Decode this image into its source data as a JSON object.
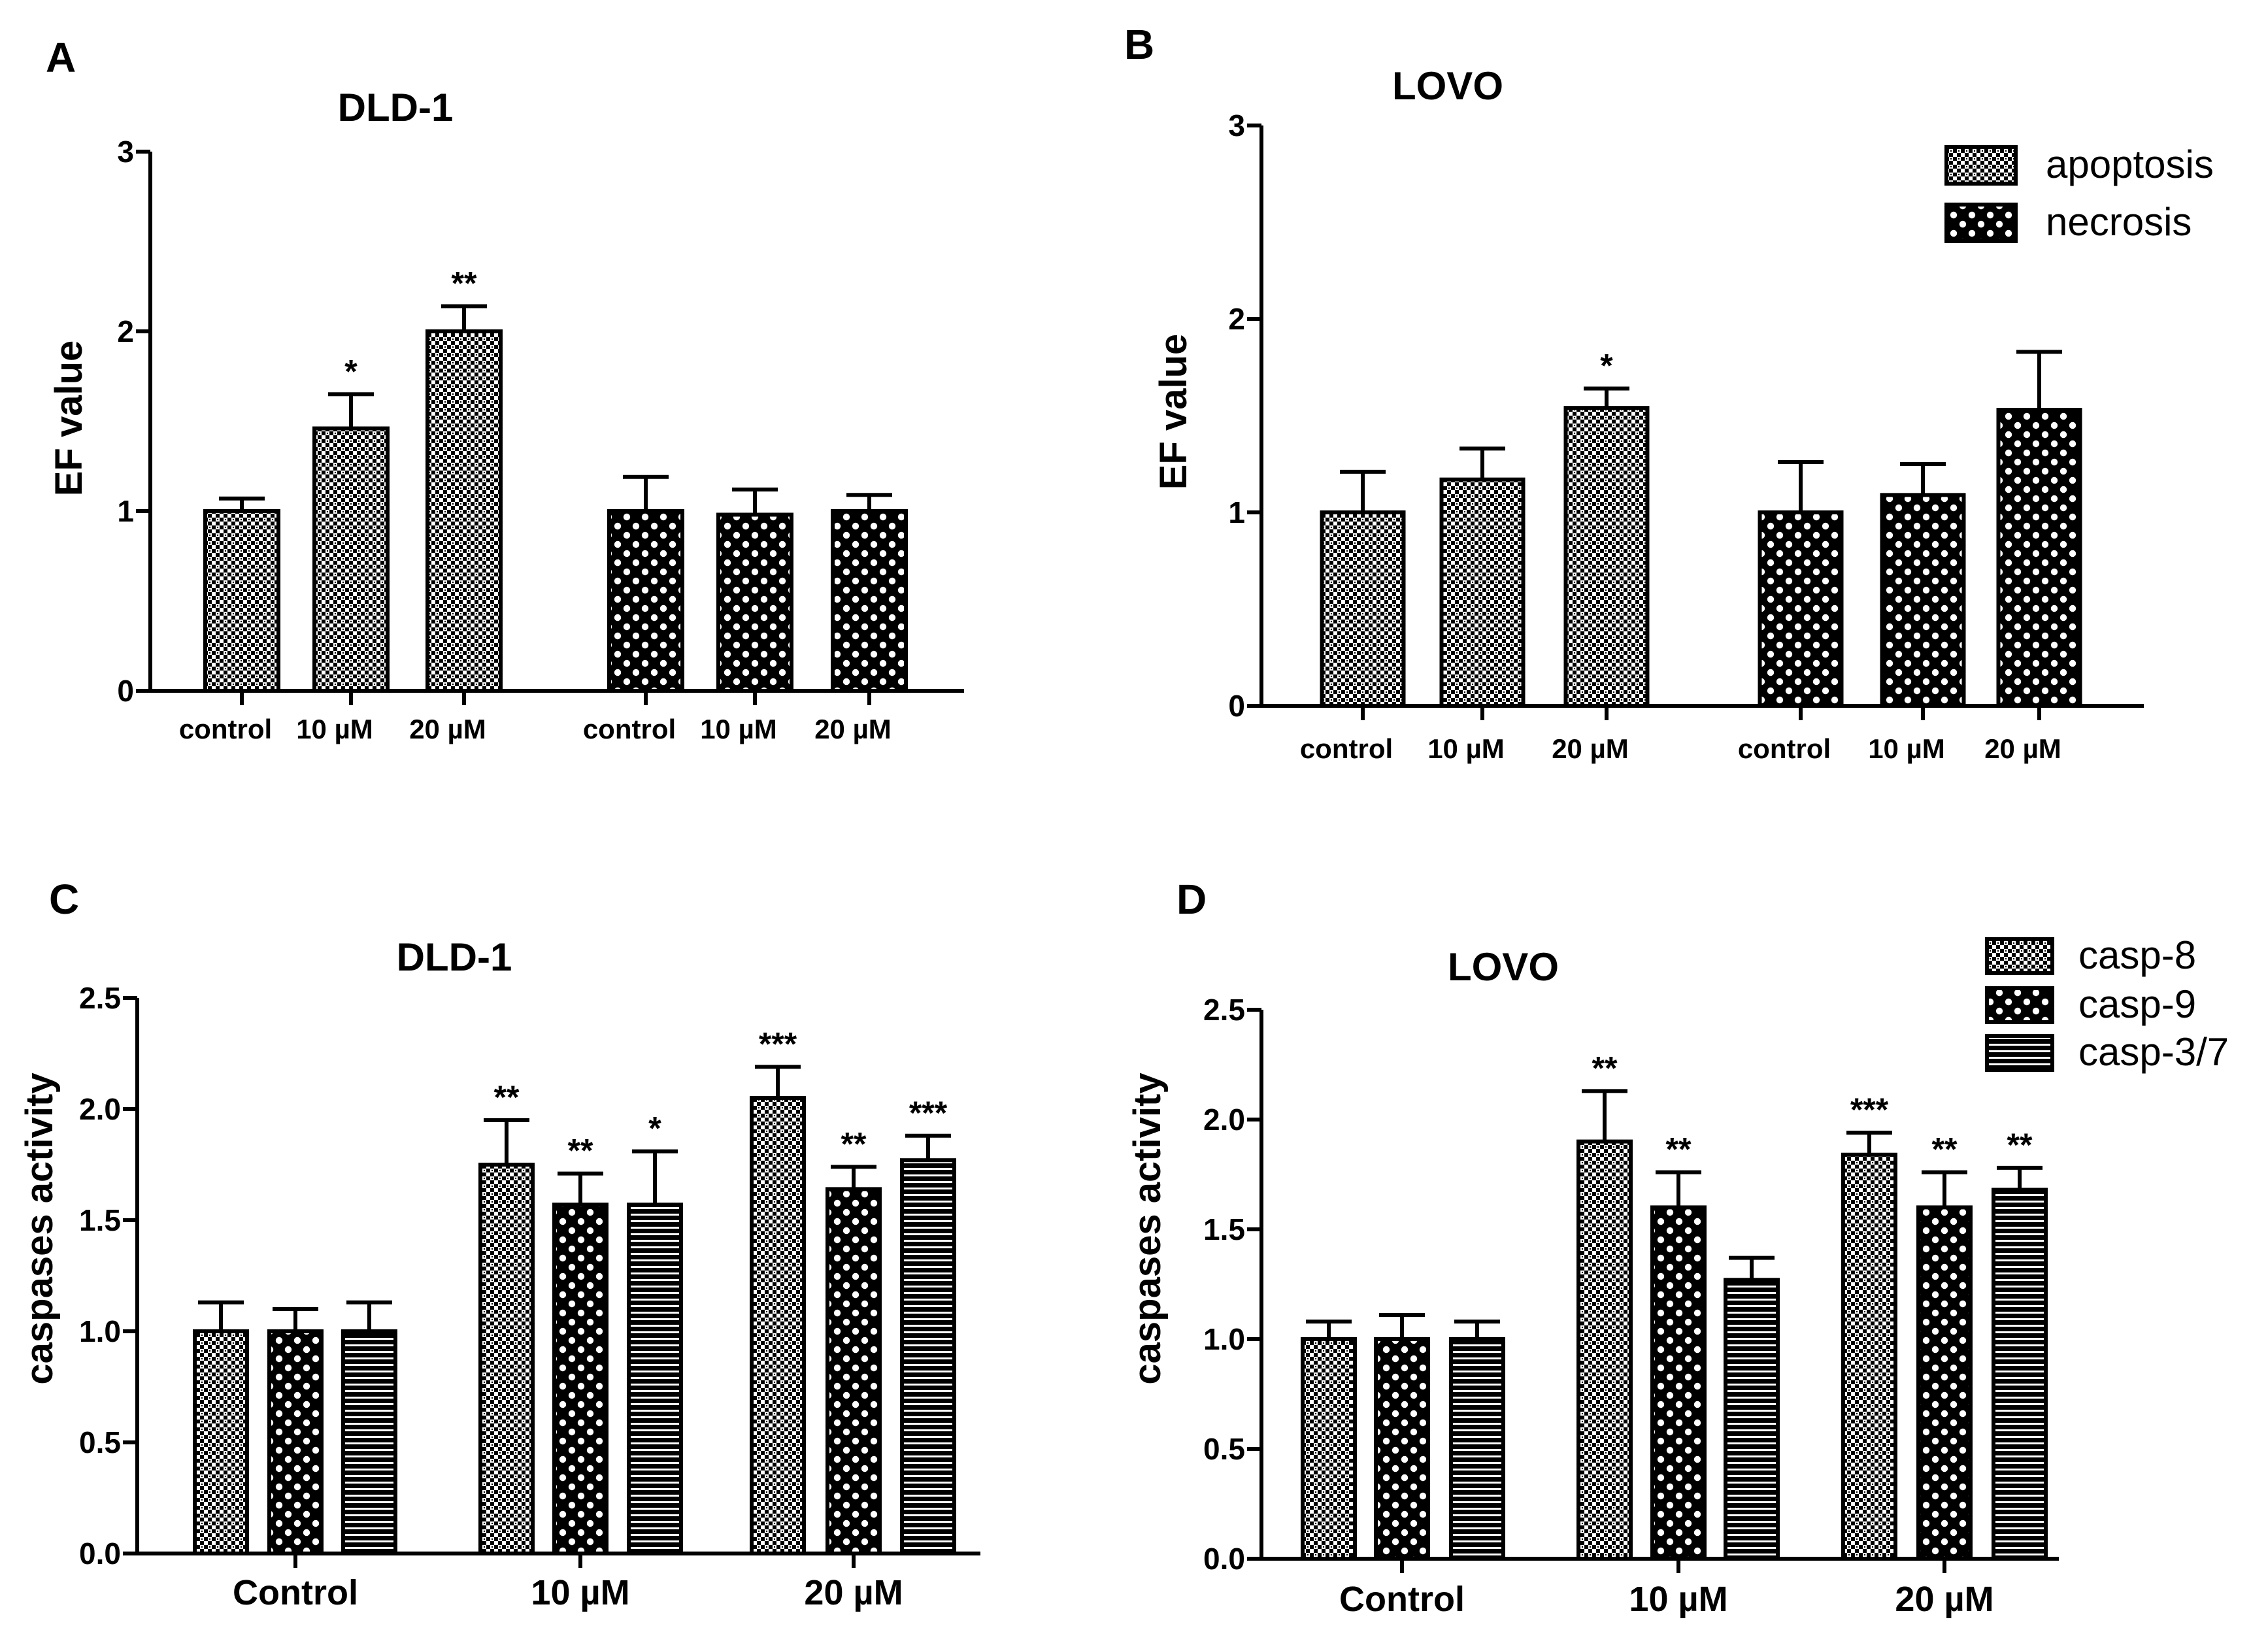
{
  "figure": {
    "colors": {
      "ink": "#000000",
      "background": "#ffffff",
      "bar_fill_base": "#ffffff"
    },
    "patterns": {
      "apoptosis": "fine-dot-pattern",
      "necrosis": "checker-pattern",
      "casp-8": "fine-dot-pattern",
      "casp-9": "checker-pattern",
      "casp-3/7": "horizontal-stripe-pattern"
    }
  },
  "chart_data": [
    {
      "panel": "A",
      "type": "bar",
      "title": "DLD-1",
      "xlabel": "",
      "ylabel": "EF value",
      "ylim": [
        0,
        3
      ],
      "yticks": [
        "0",
        "1",
        "2",
        "3"
      ],
      "categories": [
        "control",
        "10 µM",
        "20 µM",
        "control",
        "10 µM",
        "20 µM"
      ],
      "groups": [
        {
          "series": "apoptosis",
          "bars": [
            {
              "label": "control",
              "value": 1.0,
              "error": 0.07,
              "sig": ""
            },
            {
              "label": "10 µM",
              "value": 1.46,
              "error": 0.19,
              "sig": "*"
            },
            {
              "label": "20 µM",
              "value": 2.0,
              "error": 0.14,
              "sig": "**"
            }
          ]
        },
        {
          "series": "necrosis",
          "bars": [
            {
              "label": "control",
              "value": 1.0,
              "error": 0.19,
              "sig": ""
            },
            {
              "label": "10 µM",
              "value": 0.98,
              "error": 0.14,
              "sig": ""
            },
            {
              "label": "20 µM",
              "value": 1.0,
              "error": 0.09,
              "sig": ""
            }
          ]
        }
      ]
    },
    {
      "panel": "B",
      "type": "bar",
      "title": "LOVO",
      "xlabel": "",
      "ylabel": "EF value",
      "ylim": [
        0,
        3
      ],
      "yticks": [
        "0",
        "1",
        "2",
        "3"
      ],
      "categories": [
        "control",
        "10 µM",
        "20 µM",
        "control",
        "10 µM",
        "20 µM"
      ],
      "legend": {
        "placement": "top-right",
        "entries": [
          "apoptosis",
          "necrosis"
        ]
      },
      "groups": [
        {
          "series": "apoptosis",
          "bars": [
            {
              "label": "control",
              "value": 1.0,
              "error": 0.21,
              "sig": ""
            },
            {
              "label": "10 µM",
              "value": 1.17,
              "error": 0.16,
              "sig": ""
            },
            {
              "label": "20 µM",
              "value": 1.54,
              "error": 0.1,
              "sig": "*"
            }
          ]
        },
        {
          "series": "necrosis",
          "bars": [
            {
              "label": "control",
              "value": 1.0,
              "error": 0.26,
              "sig": ""
            },
            {
              "label": "10 µM",
              "value": 1.09,
              "error": 0.16,
              "sig": ""
            },
            {
              "label": "20 µM",
              "value": 1.53,
              "error": 0.3,
              "sig": ""
            }
          ]
        }
      ]
    },
    {
      "panel": "C",
      "type": "bar",
      "title": "DLD-1",
      "xlabel": "",
      "ylabel": "caspases activity",
      "ylim": [
        0,
        2.5
      ],
      "yticks": [
        "0.0",
        "0.5",
        "1.0",
        "1.5",
        "2.0",
        "2.5"
      ],
      "categories": [
        "Control",
        "10 µM",
        "20 µM"
      ],
      "groups": [
        {
          "label": "Control",
          "bars": [
            {
              "series": "casp-8",
              "value": 1.0,
              "error": 0.13,
              "sig": ""
            },
            {
              "series": "casp-9",
              "value": 1.0,
              "error": 0.1,
              "sig": ""
            },
            {
              "series": "casp-3/7",
              "value": 1.0,
              "error": 0.13,
              "sig": ""
            }
          ]
        },
        {
          "label": "10 µM",
          "bars": [
            {
              "series": "casp-8",
              "value": 1.75,
              "error": 0.2,
              "sig": "**"
            },
            {
              "series": "casp-9",
              "value": 1.57,
              "error": 0.14,
              "sig": "**"
            },
            {
              "series": "casp-3/7",
              "value": 1.57,
              "error": 0.24,
              "sig": "*"
            }
          ]
        },
        {
          "label": "20 µM",
          "bars": [
            {
              "series": "casp-8",
              "value": 2.05,
              "error": 0.14,
              "sig": "***"
            },
            {
              "series": "casp-9",
              "value": 1.64,
              "error": 0.1,
              "sig": "**"
            },
            {
              "series": "casp-3/7",
              "value": 1.77,
              "error": 0.11,
              "sig": "***"
            }
          ]
        }
      ]
    },
    {
      "panel": "D",
      "type": "bar",
      "title": "LOVO",
      "xlabel": "",
      "ylabel": "caspases activity",
      "ylim": [
        0,
        2.5
      ],
      "yticks": [
        "0.0",
        "0.5",
        "1.0",
        "1.5",
        "2.0",
        "2.5"
      ],
      "categories": [
        "Control",
        "10 µM",
        "20 µM"
      ],
      "legend": {
        "placement": "top-right",
        "entries": [
          "casp-8",
          "casp-9",
          "casp-3/7"
        ]
      },
      "groups": [
        {
          "label": "Control",
          "bars": [
            {
              "series": "casp-8",
              "value": 1.0,
              "error": 0.08,
              "sig": ""
            },
            {
              "series": "casp-9",
              "value": 1.0,
              "error": 0.11,
              "sig": ""
            },
            {
              "series": "casp-3/7",
              "value": 1.0,
              "error": 0.08,
              "sig": ""
            }
          ]
        },
        {
          "label": "10 µM",
          "bars": [
            {
              "series": "casp-8",
              "value": 1.9,
              "error": 0.23,
              "sig": "**"
            },
            {
              "series": "casp-9",
              "value": 1.6,
              "error": 0.16,
              "sig": "**"
            },
            {
              "series": "casp-3/7",
              "value": 1.27,
              "error": 0.1,
              "sig": ""
            }
          ]
        },
        {
          "label": "20 µM",
          "bars": [
            {
              "series": "casp-8",
              "value": 1.84,
              "error": 0.1,
              "sig": "***"
            },
            {
              "series": "casp-9",
              "value": 1.6,
              "error": 0.16,
              "sig": "**"
            },
            {
              "series": "casp-3/7",
              "value": 1.68,
              "error": 0.1,
              "sig": "**"
            }
          ]
        }
      ]
    }
  ]
}
